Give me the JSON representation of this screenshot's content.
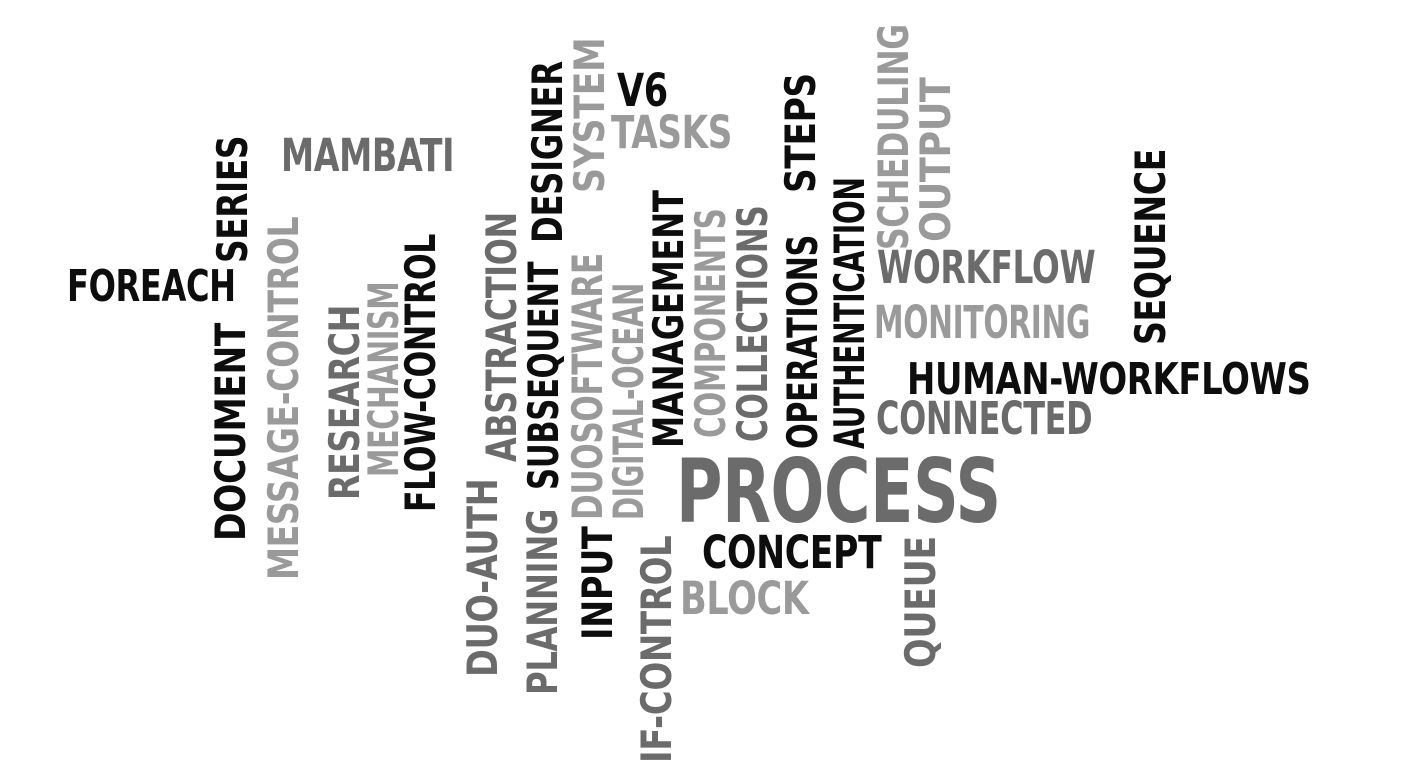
{
  "colors": {
    "black": "#0d0d0d",
    "dark_gray": "#6b6b6b",
    "light_gray": "#9a9a9a",
    "background": "#ffffff"
  },
  "words": [
    {
      "text": "PROCESS",
      "tone": "dark_gray"
    },
    {
      "text": "HUMAN-WORKFLOWS",
      "tone": "black"
    },
    {
      "text": "FOREACH",
      "tone": "black"
    },
    {
      "text": "MAMBATI",
      "tone": "dark_gray"
    },
    {
      "text": "V6",
      "tone": "black"
    },
    {
      "text": "TASKS",
      "tone": "light_gray"
    },
    {
      "text": "WORKFLOW",
      "tone": "dark_gray"
    },
    {
      "text": "MONITORING",
      "tone": "light_gray"
    },
    {
      "text": "CONNECTED",
      "tone": "dark_gray"
    },
    {
      "text": "CONCEPT",
      "tone": "black"
    },
    {
      "text": "BLOCK",
      "tone": "light_gray"
    },
    {
      "text": "SERIES",
      "tone": "black"
    },
    {
      "text": "DOCUMENT",
      "tone": "black"
    },
    {
      "text": "MESSAGE-CONTROL",
      "tone": "light_gray"
    },
    {
      "text": "RESEARCH",
      "tone": "dark_gray"
    },
    {
      "text": "MECHANISM",
      "tone": "light_gray"
    },
    {
      "text": "FLOW-CONTROL",
      "tone": "black"
    },
    {
      "text": "DUO-AUTH",
      "tone": "dark_gray"
    },
    {
      "text": "ABSTRACTION",
      "tone": "dark_gray"
    },
    {
      "text": "PLANNING",
      "tone": "dark_gray"
    },
    {
      "text": "SUBSEQUENT",
      "tone": "black"
    },
    {
      "text": "DESIGNER",
      "tone": "black"
    },
    {
      "text": "INPUT",
      "tone": "black"
    },
    {
      "text": "DUOSOFTWARE",
      "tone": "light_gray"
    },
    {
      "text": "SYSTEM",
      "tone": "light_gray"
    },
    {
      "text": "DIGITAL-OCEAN",
      "tone": "light_gray"
    },
    {
      "text": "IF-CONTROL",
      "tone": "dark_gray"
    },
    {
      "text": "MANAGEMENT",
      "tone": "black"
    },
    {
      "text": "COMPONENTS",
      "tone": "light_gray"
    },
    {
      "text": "COLLECTIONS",
      "tone": "dark_gray"
    },
    {
      "text": "OPERATIONS",
      "tone": "black"
    },
    {
      "text": "STEPS",
      "tone": "black"
    },
    {
      "text": "AUTHENTICATION",
      "tone": "black"
    },
    {
      "text": "SCHEDULING",
      "tone": "light_gray"
    },
    {
      "text": "OUTPUT",
      "tone": "light_gray"
    },
    {
      "text": "QUEUE",
      "tone": "dark_gray"
    },
    {
      "text": "SEQUENCE",
      "tone": "black"
    }
  ]
}
